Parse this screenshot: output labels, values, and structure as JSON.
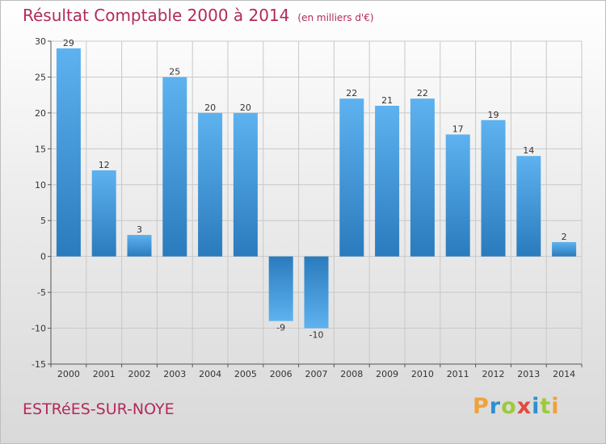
{
  "header": {
    "title": "Résultat Comptable 2000 à 2014",
    "subtitle": "(en milliers d'€)"
  },
  "footer": {
    "town": "ESTRéES-SUR-NOYE",
    "logo": "Proxiti"
  },
  "colors": {
    "title": "#b22a5d",
    "bar_dark": "#2a7bbd",
    "bar_light": "#5eb2ef",
    "grid": "#c8c8c8",
    "logo_letters": [
      "#f0a13a",
      "#2e8fcf",
      "#9ccb3b",
      "#e04c3d",
      "#2e8fcf",
      "#9ccb3b",
      "#f0a13a"
    ]
  },
  "chart_data": {
    "type": "bar",
    "title": "Résultat Comptable 2000 à 2014",
    "xlabel": "",
    "ylabel": "",
    "categories": [
      "2000",
      "2001",
      "2002",
      "2003",
      "2004",
      "2005",
      "2006",
      "2007",
      "2008",
      "2009",
      "2010",
      "2011",
      "2012",
      "2013",
      "2014"
    ],
    "values": [
      29,
      12,
      3,
      25,
      20,
      20,
      -9,
      -10,
      22,
      21,
      22,
      17,
      19,
      14,
      2
    ],
    "ylim": [
      -15,
      30
    ],
    "yticks": [
      30,
      25,
      20,
      15,
      10,
      5,
      0,
      -5,
      -10,
      -15
    ],
    "grid": true
  }
}
